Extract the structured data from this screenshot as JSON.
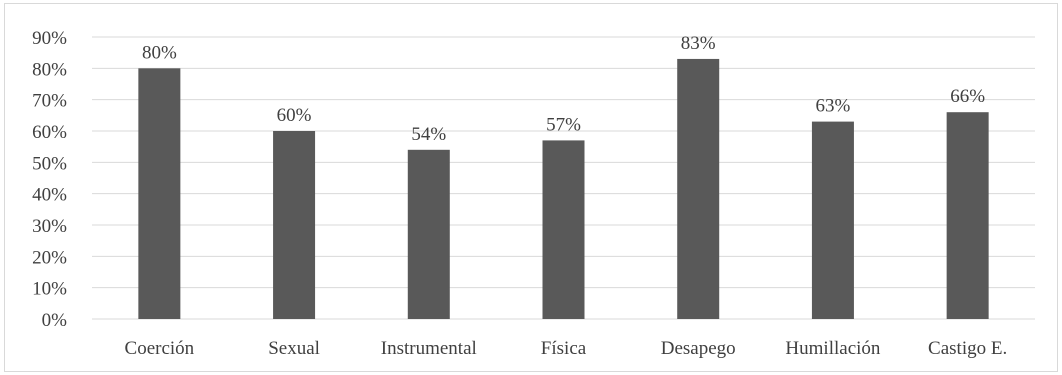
{
  "chart_data": {
    "type": "bar",
    "title": "",
    "xlabel": "",
    "ylabel": "",
    "categories": [
      "Coerción",
      "Sexual",
      "Instrumental",
      "Física",
      "Desapego",
      "Humillación",
      "Castigo E."
    ],
    "values": [
      80,
      60,
      54,
      57,
      83,
      63,
      66
    ],
    "data_labels": [
      "80%",
      "60%",
      "54%",
      "57%",
      "83%",
      "63%",
      "66%"
    ],
    "ylim": [
      0,
      90
    ],
    "yticks": [
      0,
      10,
      20,
      30,
      40,
      50,
      60,
      70,
      80,
      90
    ],
    "ytick_labels": [
      "0%",
      "10%",
      "20%",
      "30%",
      "40%",
      "50%",
      "60%",
      "70%",
      "80%",
      "90%"
    ],
    "grid": true,
    "legend": "none",
    "bar_color": "#595959",
    "grid_color": "#d9d9d9",
    "text_color": "#404040"
  }
}
